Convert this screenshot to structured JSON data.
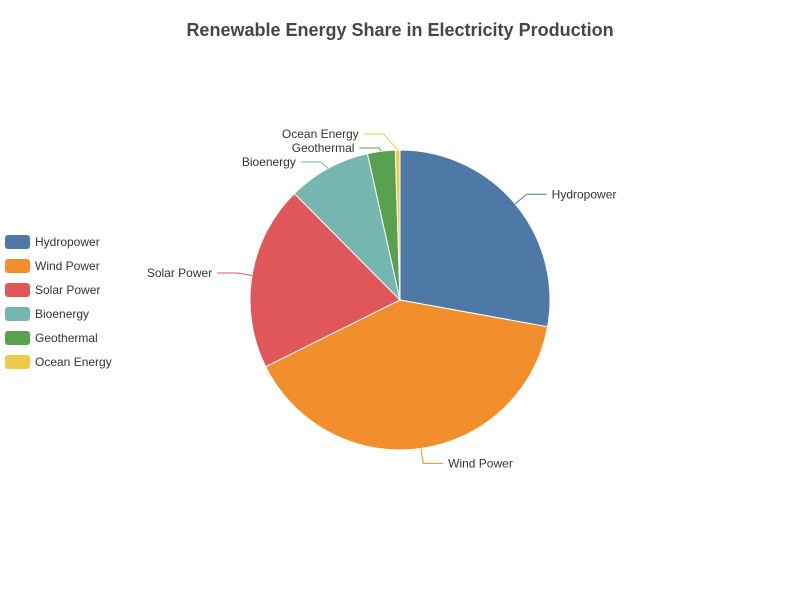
{
  "chart_data": {
    "type": "pie",
    "title": "Renewable Energy Share in Electricity Production",
    "legend_position": "left",
    "categories": [
      "Hydropower",
      "Wind Power",
      "Solar Power",
      "Bioenergy",
      "Geothermal",
      "Ocean Energy"
    ],
    "values": [
      28,
      40,
      20,
      9,
      3,
      0.5
    ],
    "colors": [
      "#4e79a7",
      "#f28e2b",
      "#e15759",
      "#76b7b2",
      "#59a14f",
      "#edc948"
    ]
  }
}
